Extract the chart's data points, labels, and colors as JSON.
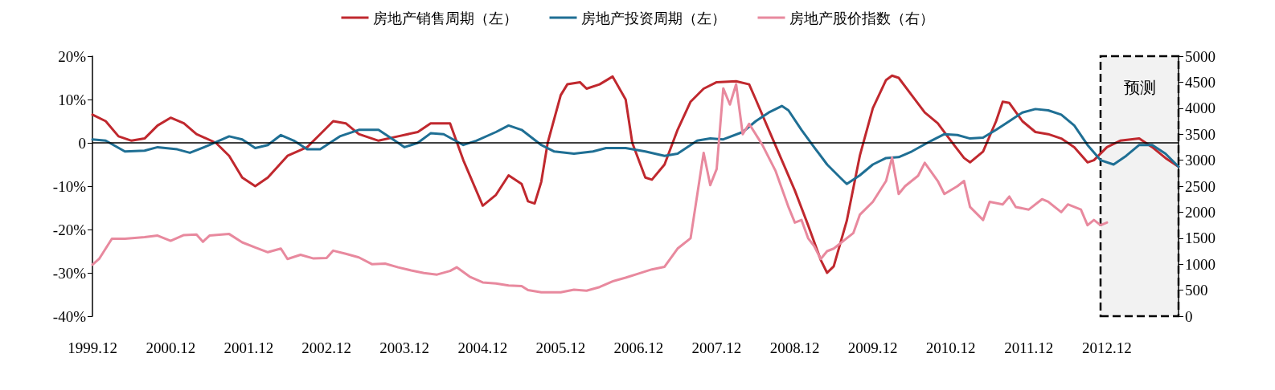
{
  "chart_data": {
    "type": "line",
    "legend": "top",
    "grid": false,
    "marker": "none",
    "line_style": "solid",
    "xlim": [
      "1999-12",
      "2013-11"
    ],
    "xticks": [
      {
        "value": "1999-12",
        "label": "1999.12"
      },
      {
        "value": "2000-12",
        "label": "2000.12"
      },
      {
        "value": "2001-12",
        "label": "2001.12"
      },
      {
        "value": "2002-12",
        "label": "2002.12"
      },
      {
        "value": "2003-12",
        "label": "2003.12"
      },
      {
        "value": "2004-12",
        "label": "2004.12"
      },
      {
        "value": "2005-12",
        "label": "2005.12"
      },
      {
        "value": "2006-12",
        "label": "2006.12"
      },
      {
        "value": "2007-12",
        "label": "2007.12"
      },
      {
        "value": "2008-12",
        "label": "2008.12"
      },
      {
        "value": "2009-12",
        "label": "2009.12"
      },
      {
        "value": "2010-12",
        "label": "2010.12"
      },
      {
        "value": "2011-12",
        "label": "2011.12"
      },
      {
        "value": "2012-12",
        "label": "2012.12"
      }
    ],
    "ylim": [
      -40,
      20
    ],
    "yticks": [
      {
        "value": 20,
        "label": "20%"
      },
      {
        "value": 10,
        "label": "10%"
      },
      0,
      {
        "value": -10,
        "label": "-10%"
      },
      {
        "value": -20,
        "label": "-20%"
      },
      {
        "value": -30,
        "label": "-30%"
      },
      {
        "value": -40,
        "label": "-40%"
      }
    ],
    "y2lim": [
      0,
      5000
    ],
    "y2ticks": [
      0,
      500,
      1000,
      1500,
      2000,
      2500,
      3000,
      3500,
      4000,
      4500,
      5000
    ],
    "ref_lines": [
      {
        "axis": "y",
        "value": 0,
        "color": "#000000"
      }
    ],
    "bands": [
      {
        "axis": "x",
        "from": "2012-11",
        "to": "2013-11",
        "label": "预测"
      }
    ],
    "series": [
      {
        "name": "房地产销售周期（左）",
        "color": "#c0282e",
        "x": [
          "1999-12",
          "2000-02",
          "2000-04",
          "2000-06",
          "2000-08",
          "2000-10",
          "2000-12",
          "2001-02",
          "2001-04",
          "2001-07",
          "2001-09",
          "2001-11",
          "2002-01",
          "2002-03",
          "2002-06",
          "2002-09",
          "2002-11",
          "2003-01",
          "2003-03",
          "2003-05",
          "2003-08",
          "2003-11",
          "2004-02",
          "2004-04",
          "2004-07",
          "2004-09",
          "2004-12",
          "2005-02",
          "2005-04",
          "2005-06",
          "2005-07",
          "2005-08",
          "2005-09",
          "2005-10",
          "2005-12",
          "2006-01",
          "2006-03",
          "2006-04",
          "2006-06",
          "2006-08",
          "2006-10",
          "2006-11",
          "2007-01",
          "2007-02",
          "2007-04",
          "2007-06",
          "2007-08",
          "2007-10",
          "2007-12",
          "2008-03",
          "2008-05",
          "2008-06",
          "2008-08",
          "2008-10",
          "2008-12",
          "2009-02",
          "2009-04",
          "2009-05",
          "2009-06",
          "2009-08",
          "2009-10",
          "2009-12",
          "2010-02",
          "2010-03",
          "2010-04",
          "2010-06",
          "2010-08",
          "2010-10",
          "2010-12",
          "2011-02",
          "2011-03",
          "2011-05",
          "2011-07",
          "2011-08",
          "2011-09",
          "2011-11",
          "2012-01",
          "2012-03",
          "2012-05",
          "2012-07",
          "2012-09",
          "2012-10",
          "2012-12",
          "2013-02",
          "2013-05",
          "2013-07",
          "2013-09",
          "2013-11"
        ],
        "values": [
          6.5,
          5,
          1.5,
          0.5,
          1,
          4,
          5.8,
          4.5,
          2,
          0,
          -3,
          -8,
          -10,
          -8,
          -3,
          -1,
          2,
          5,
          4.5,
          2,
          0.5,
          1.5,
          2.5,
          4.5,
          4.5,
          -4,
          -14.5,
          -12,
          -7.5,
          -9.5,
          -13.5,
          -14,
          -9,
          0,
          11,
          13.5,
          14,
          12.5,
          13.5,
          15.3,
          10,
          0,
          -8,
          -8.5,
          -5,
          3,
          9.5,
          12.5,
          14,
          14.2,
          13.5,
          10,
          3,
          -4,
          -11,
          -19,
          -27,
          -30,
          -28.5,
          -18,
          -3,
          8,
          14.5,
          15.5,
          15,
          11,
          7,
          4.5,
          0.5,
          -3.5,
          -4.5,
          -2,
          5,
          9.5,
          9.2,
          5,
          2.5,
          2,
          1,
          -1,
          -4.5,
          -4,
          -1,
          0.5,
          1,
          -1,
          -3.5,
          -5.5
        ]
      },
      {
        "name": "房地产投资周期（左）",
        "color": "#1f6f94",
        "x": [
          "1999-12",
          "2000-02",
          "2000-05",
          "2000-08",
          "2000-10",
          "2001-01",
          "2001-03",
          "2001-06",
          "2001-09",
          "2001-11",
          "2002-01",
          "2002-03",
          "2002-05",
          "2002-07",
          "2002-09",
          "2002-11",
          "2003-02",
          "2003-05",
          "2003-08",
          "2003-10",
          "2003-12",
          "2004-02",
          "2004-04",
          "2004-06",
          "2004-09",
          "2004-11",
          "2005-02",
          "2005-04",
          "2005-06",
          "2005-09",
          "2005-11",
          "2006-02",
          "2006-05",
          "2006-07",
          "2006-10",
          "2007-01",
          "2007-04",
          "2007-06",
          "2007-09",
          "2007-11",
          "2008-01",
          "2008-04",
          "2008-06",
          "2008-08",
          "2008-10",
          "2008-11",
          "2009-01",
          "2009-03",
          "2009-05",
          "2009-07",
          "2009-08",
          "2009-10",
          "2009-12",
          "2010-02",
          "2010-04",
          "2010-06",
          "2010-09",
          "2010-11",
          "2011-01",
          "2011-03",
          "2011-05",
          "2011-07",
          "2011-09",
          "2011-11",
          "2012-01",
          "2012-03",
          "2012-05",
          "2012-07",
          "2012-09",
          "2012-11",
          "2013-01",
          "2013-03",
          "2013-05",
          "2013-07",
          "2013-09",
          "2013-11"
        ],
        "values": [
          0.8,
          0.5,
          -2,
          -1.8,
          -1,
          -1.5,
          -2.3,
          -0.5,
          1.5,
          0.8,
          -1.2,
          -0.5,
          1.8,
          0.5,
          -1.5,
          -1.5,
          1.5,
          3,
          3,
          1,
          -1,
          0,
          2.2,
          2,
          -0.5,
          0.5,
          2.5,
          4,
          3,
          -0.5,
          -2,
          -2.5,
          -2,
          -1.2,
          -1.2,
          -2,
          -3,
          -2.5,
          0.5,
          1,
          0.8,
          2.5,
          5,
          7,
          8.5,
          7.5,
          3,
          -1,
          -5,
          -8,
          -9.5,
          -7.5,
          -5,
          -3.5,
          -3.3,
          -2,
          0.5,
          2,
          1.8,
          1,
          1.2,
          3,
          5,
          7,
          7.8,
          7.5,
          6.5,
          4,
          -0.5,
          -4,
          -5,
          -3,
          -0.5,
          -0.5,
          -2.5,
          -5.5
        ]
      },
      {
        "name": "房地产股价指数（右）",
        "color": "#e8899e",
        "axis": "y2",
        "x": [
          "1999-12",
          "2000-01",
          "2000-03",
          "2000-05",
          "2000-08",
          "2000-10",
          "2000-12",
          "2001-02",
          "2001-04",
          "2001-05",
          "2001-06",
          "2001-09",
          "2001-11",
          "2002-01",
          "2002-03",
          "2002-05",
          "2002-06",
          "2002-08",
          "2002-10",
          "2002-12",
          "2003-01",
          "2003-03",
          "2003-05",
          "2003-07",
          "2003-09",
          "2003-11",
          "2004-01",
          "2004-03",
          "2004-05",
          "2004-07",
          "2004-08",
          "2004-10",
          "2004-12",
          "2005-02",
          "2005-04",
          "2005-06",
          "2005-07",
          "2005-09",
          "2005-12",
          "2006-02",
          "2006-04",
          "2006-06",
          "2006-08",
          "2006-10",
          "2006-12",
          "2007-02",
          "2007-04",
          "2007-06",
          "2007-08",
          "2007-10",
          "2007-11",
          "2007-12",
          "2008-01",
          "2008-02",
          "2008-03",
          "2008-04",
          "2008-05",
          "2008-07",
          "2008-09",
          "2008-11",
          "2008-12",
          "2009-01",
          "2009-02",
          "2009-03",
          "2009-04",
          "2009-05",
          "2009-06",
          "2009-08",
          "2009-09",
          "2009-10",
          "2009-12",
          "2010-02",
          "2010-03",
          "2010-04",
          "2010-05",
          "2010-07",
          "2010-08",
          "2010-10",
          "2010-11",
          "2011-01",
          "2011-02",
          "2011-03",
          "2011-05",
          "2011-06",
          "2011-08",
          "2011-09",
          "2011-10",
          "2011-12",
          "2012-02",
          "2012-03",
          "2012-05",
          "2012-06",
          "2012-08",
          "2012-09",
          "2012-10",
          "2012-11",
          "2012-12"
        ],
        "values": [
          990,
          1100,
          1490,
          1490,
          1520,
          1550,
          1450,
          1560,
          1570,
          1430,
          1550,
          1580,
          1420,
          1320,
          1230,
          1300,
          1100,
          1180,
          1110,
          1120,
          1260,
          1200,
          1130,
          1000,
          1010,
          940,
          880,
          830,
          800,
          870,
          940,
          760,
          650,
          630,
          590,
          580,
          500,
          460,
          460,
          510,
          490,
          560,
          670,
          740,
          820,
          900,
          950,
          1300,
          1500,
          3140,
          2520,
          2830,
          4380,
          4070,
          4460,
          3500,
          3700,
          3300,
          2800,
          2100,
          1800,
          1850,
          1500,
          1350,
          1100,
          1250,
          1300,
          1500,
          1600,
          1950,
          2200,
          2600,
          3050,
          2350,
          2500,
          2700,
          2950,
          2600,
          2350,
          2500,
          2600,
          2100,
          1850,
          2200,
          2150,
          2300,
          2100,
          2050,
          2250,
          2200,
          2000,
          2150,
          2050,
          1750,
          1850,
          1750,
          1800
        ]
      }
    ]
  }
}
